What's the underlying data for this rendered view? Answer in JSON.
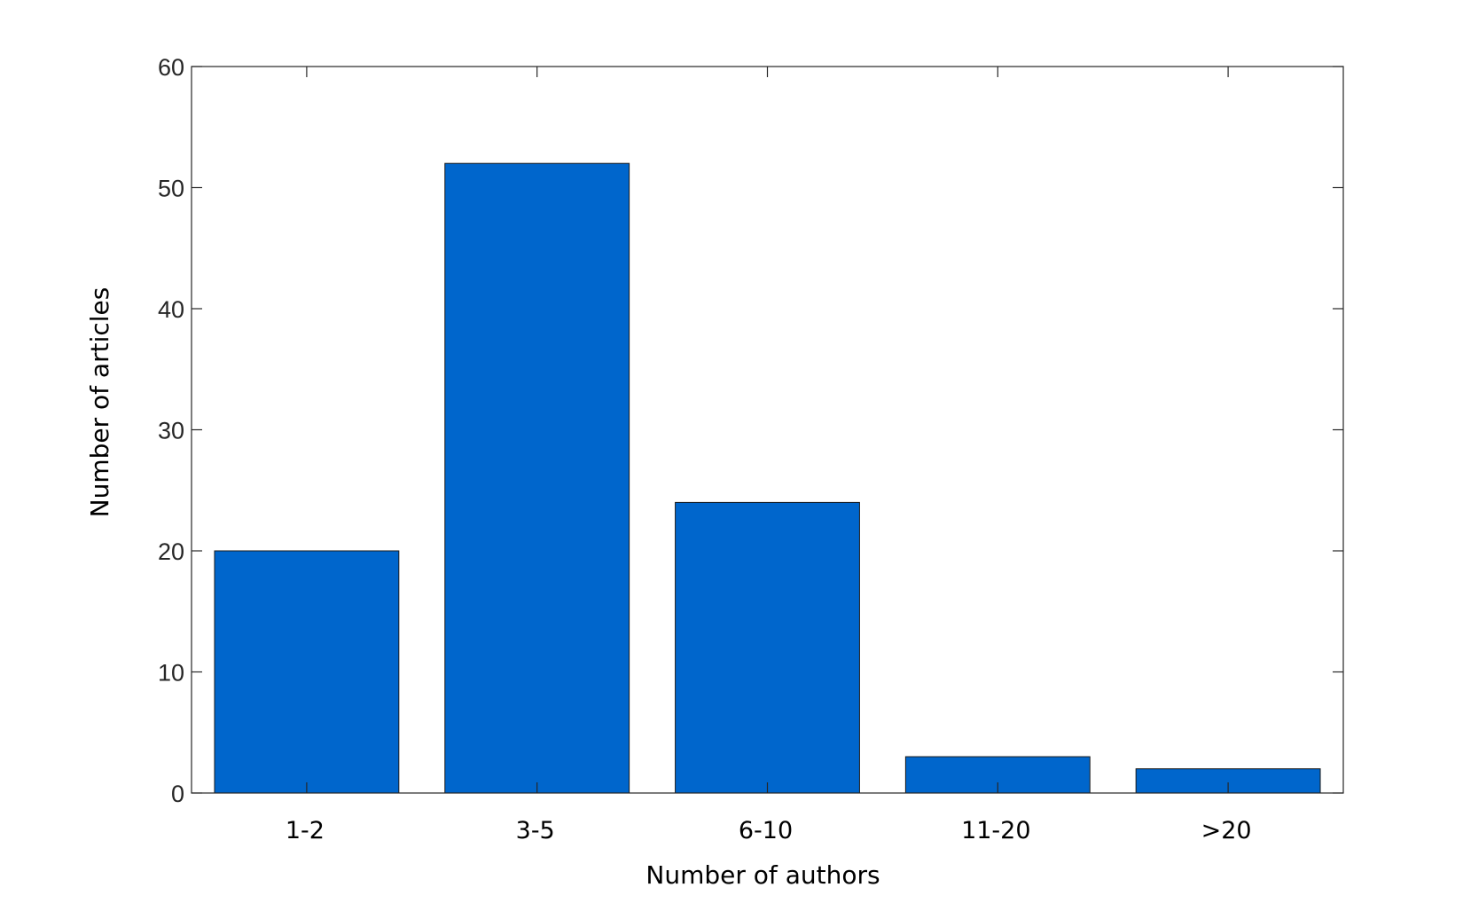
{
  "chart_data": {
    "type": "bar",
    "categories": [
      "1-2",
      "3-5",
      "6-10",
      "11-20",
      ">20"
    ],
    "values": [
      20,
      52,
      24,
      3,
      2
    ],
    "title": "",
    "xlabel": "Number of authors",
    "ylabel": "Number of articles",
    "ylim": [
      0,
      60
    ],
    "yticks": [
      0,
      10,
      20,
      30,
      40,
      50,
      60
    ],
    "grid": false,
    "legend": "none",
    "bar_color": "#0066cc"
  }
}
